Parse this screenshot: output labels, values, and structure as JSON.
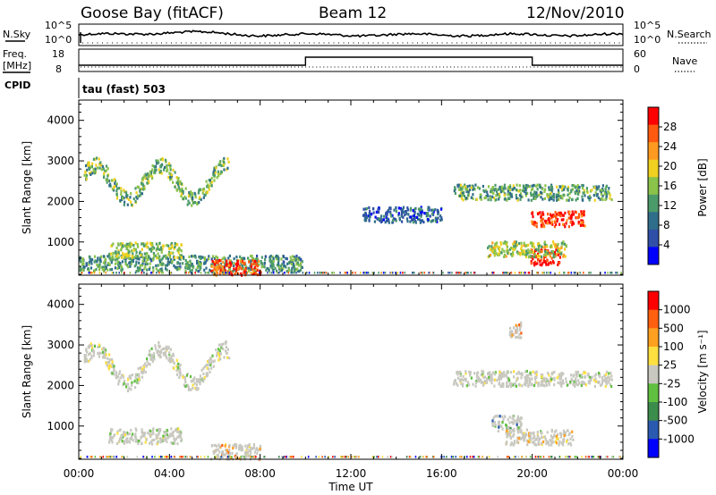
{
  "header": {
    "station": "Goose Bay (fitACF)",
    "beam": "Beam 12",
    "date": "12/Nov/2010"
  },
  "left_labels": {
    "nsky": "N.Sky",
    "freq": "Freq.",
    "freq_unit": "[MHz]",
    "cpid": "CPID",
    "cpid_value": "tau (fast) 503"
  },
  "right_labels": {
    "nsearch": "N.Search",
    "nave": "Nave"
  },
  "small_axes": {
    "noise_ticks_left": [
      "10^5",
      "10^0"
    ],
    "noise_ticks_right": [
      "10^5",
      "10^0"
    ],
    "freq_ticks": [
      "18",
      "8"
    ],
    "nave_ticks": [
      "60",
      "0"
    ]
  },
  "colors": {
    "power_scale": [
      "#0000ff",
      "#3050a8",
      "#2f6e8a",
      "#4b9a6a",
      "#8ac24a",
      "#f0d020",
      "#ff9a20",
      "#ff5a10",
      "#ff0000"
    ],
    "velocity_scale": [
      "#0000ff",
      "#2a5ab0",
      "#3c8c4c",
      "#60c040",
      "#c8c8c0",
      "#ffe040",
      "#ffa020",
      "#ff6010",
      "#ff0000"
    ],
    "gray_scatter": "#c8c8c0"
  },
  "chart_data": [
    {
      "type": "heatmap",
      "title": "",
      "xlabel": "Time UT",
      "ylabel": "Slant Range [km]",
      "x_ticks": [
        "00:00",
        "04:00",
        "08:00",
        "12:00",
        "16:00",
        "20:00",
        "00:00"
      ],
      "y_ticks": [
        "1000",
        "2000",
        "3000",
        "4000"
      ],
      "xlim_hours": [
        0,
        24
      ],
      "ylim_km": [
        180,
        4500
      ],
      "colorbar": {
        "label": "Power [dB]",
        "ticks": [
          "4",
          "8",
          "12",
          "16",
          "20",
          "24",
          "28"
        ]
      },
      "regions": [
        {
          "t0": 0.2,
          "t1": 6.6,
          "range_km": 2500,
          "level": 0.45
        },
        {
          "t0": 0.0,
          "t1": 9.9,
          "range_km": 500,
          "level": 0.35
        },
        {
          "t0": 1.3,
          "t1": 4.5,
          "range_km": 820,
          "level": 0.5
        },
        {
          "t0": 5.8,
          "t1": 8.0,
          "range_km": 400,
          "level": 0.9
        },
        {
          "t0": 12.5,
          "t1": 16.0,
          "range_km": 1700,
          "level": 0.2
        },
        {
          "t0": 16.5,
          "t1": 23.5,
          "range_km": 2250,
          "level": 0.4
        },
        {
          "t0": 19.9,
          "t1": 22.3,
          "range_km": 1600,
          "level": 0.95
        },
        {
          "t0": 19.9,
          "t1": 21.2,
          "range_km": 650,
          "level": 1.0
        },
        {
          "t0": 18.0,
          "t1": 21.5,
          "range_km": 850,
          "level": 0.55
        }
      ]
    },
    {
      "type": "heatmap",
      "title": "",
      "xlabel": "Time UT",
      "ylabel": "Slant Range [km]",
      "x_ticks": [
        "00:00",
        "04:00",
        "08:00",
        "12:00",
        "16:00",
        "20:00",
        "00:00"
      ],
      "y_ticks": [
        "1000",
        "2000",
        "3000",
        "4000"
      ],
      "xlim_hours": [
        0,
        24
      ],
      "ylim_km": [
        180,
        4500
      ],
      "colorbar": {
        "label": "Velocity [m s⁻¹]",
        "ticks": [
          "1000",
          "500",
          "100",
          "25",
          "-25",
          "-100",
          "-500",
          "-1000"
        ]
      },
      "regions": [
        {
          "t0": 0.2,
          "t1": 6.6,
          "range_km": 2500,
          "level": 0.5
        },
        {
          "t0": 1.3,
          "t1": 4.5,
          "range_km": 780,
          "level": 0.5
        },
        {
          "t0": 5.8,
          "t1": 8.0,
          "range_km": 400,
          "level": 0.75
        },
        {
          "t0": 16.5,
          "t1": 23.5,
          "range_km": 2200,
          "level": 0.5
        },
        {
          "t0": 18.9,
          "t1": 19.5,
          "range_km": 3400,
          "level": 0.85
        },
        {
          "t0": 18.2,
          "t1": 19.5,
          "range_km": 1100,
          "level": 0.25
        },
        {
          "t0": 18.8,
          "t1": 21.8,
          "range_km": 750,
          "level": 0.62
        }
      ]
    }
  ]
}
